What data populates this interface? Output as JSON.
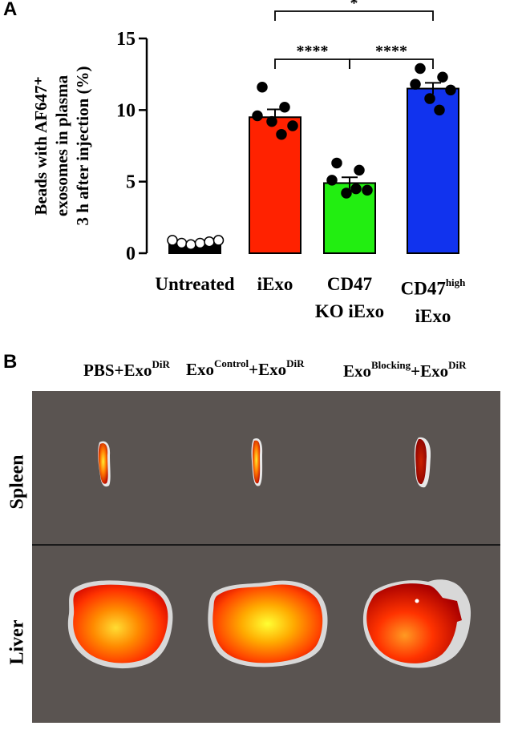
{
  "panel_a": {
    "letter": "A",
    "y_label_lines": [
      "Beads with AF647⁺",
      "exosomes in plasma",
      "3 h after injection (%)"
    ],
    "significance": [
      {
        "from": 1,
        "to": 3,
        "label": "*"
      },
      {
        "from": 1,
        "to": 2,
        "label": "****"
      },
      {
        "from": 2,
        "to": 3,
        "label": "****"
      }
    ]
  },
  "chart_data": {
    "type": "bar",
    "categories": [
      "Untreated",
      "iExo",
      "CD47 KO iExo",
      "CD47high iExo"
    ],
    "category_lines": [
      [
        "Untreated"
      ],
      [
        "iExo"
      ],
      [
        "CD47",
        "KO iExo"
      ],
      [
        "CD47",
        "iExo"
      ]
    ],
    "category_superscripts": [
      "",
      "",
      "",
      "high"
    ],
    "values": [
      0.6,
      9.5,
      4.9,
      11.5
    ],
    "errors": [
      0.1,
      0.55,
      0.4,
      0.4
    ],
    "colors": [
      "#000000",
      "#ff2200",
      "#22ee11",
      "#1133ee"
    ],
    "points": [
      [
        0.9,
        0.7,
        0.6,
        0.7,
        0.8,
        0.9
      ],
      [
        11.6,
        10.2,
        9.6,
        8.9,
        9.2,
        8.3
      ],
      [
        6.3,
        5.8,
        5.1,
        4.4,
        4.2,
        4.5
      ],
      [
        12.9,
        12.3,
        11.8,
        11.4,
        10.8,
        10.0
      ]
    ],
    "point_styles": [
      "open",
      "filled",
      "filled",
      "filled"
    ],
    "ylabel": "Beads with AF647⁺ exosomes in plasma 3 h after injection (%)",
    "yticks": [
      0,
      5,
      10,
      15
    ],
    "ylim": [
      0,
      15
    ],
    "grid": false
  },
  "panel_b": {
    "letter": "B",
    "columns": [
      {
        "base": "PBS+Exo",
        "sup": "DiR",
        "base2": "",
        "sup2": ""
      },
      {
        "base": "Exo",
        "sup": "Control",
        "base2": "+Exo",
        "sup2": "DiR"
      },
      {
        "base": "Exo",
        "sup": "Blocking",
        "base2": "+Exo",
        "sup2": "DiR"
      }
    ],
    "rows": [
      "Spleen",
      "Liver"
    ],
    "background": "#5a5451"
  }
}
